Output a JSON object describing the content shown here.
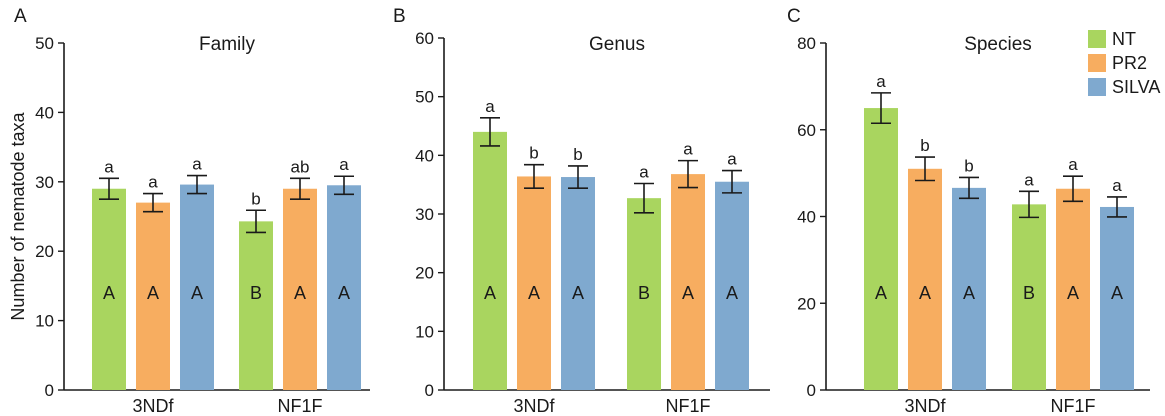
{
  "colors": {
    "NT": "#a9d55f",
    "PR2": "#f7ad60",
    "SILVA": "#7fa9cf",
    "axis": "#1a1a1a"
  },
  "legend": {
    "items": [
      "NT",
      "PR2",
      "SILVA"
    ],
    "placement": "top-right"
  },
  "chart_data": [
    {
      "panel_label": "A",
      "type": "bar",
      "title": "Family",
      "ylabel": "Number of nematode taxa",
      "xlabel": "",
      "ylim": [
        0,
        50
      ],
      "yticks": [
        0,
        10,
        20,
        30,
        40,
        50
      ],
      "categories": [
        "3NDf",
        "NF1F"
      ],
      "series": [
        {
          "name": "NT",
          "values": [
            29.0,
            24.3
          ],
          "err": [
            1.5,
            1.6
          ],
          "sig_upper": [
            "a",
            "b"
          ],
          "sig_lower": [
            "A",
            "B"
          ]
        },
        {
          "name": "PR2",
          "values": [
            27.0,
            29.0
          ],
          "err": [
            1.3,
            1.5
          ],
          "sig_upper": [
            "a",
            "ab"
          ],
          "sig_lower": [
            "A",
            "A"
          ]
        },
        {
          "name": "SILVA",
          "values": [
            29.6,
            29.5
          ],
          "err": [
            1.3,
            1.3
          ],
          "sig_upper": [
            "a",
            "a"
          ],
          "sig_lower": [
            "A",
            "A"
          ]
        }
      ]
    },
    {
      "panel_label": "B",
      "type": "bar",
      "title": "Genus",
      "ylabel": "",
      "xlabel": "",
      "ylim": [
        0,
        60
      ],
      "yticks": [
        0,
        10,
        20,
        30,
        40,
        50,
        60
      ],
      "categories": [
        "3NDf",
        "NF1F"
      ],
      "series": [
        {
          "name": "NT",
          "values": [
            44.0,
            32.7
          ],
          "err": [
            2.4,
            2.5
          ],
          "sig_upper": [
            "a",
            "a"
          ],
          "sig_lower": [
            "A",
            "B"
          ]
        },
        {
          "name": "PR2",
          "values": [
            36.4,
            36.8
          ],
          "err": [
            2.0,
            2.3
          ],
          "sig_upper": [
            "b",
            "a"
          ],
          "sig_lower": [
            "A",
            "A"
          ]
        },
        {
          "name": "SILVA",
          "values": [
            36.3,
            35.5
          ],
          "err": [
            1.9,
            1.9
          ],
          "sig_upper": [
            "b",
            "a"
          ],
          "sig_lower": [
            "A",
            "A"
          ]
        }
      ]
    },
    {
      "panel_label": "C",
      "type": "bar",
      "title": "Species",
      "ylabel": "",
      "xlabel": "",
      "ylim": [
        0,
        80
      ],
      "yticks": [
        0,
        20,
        40,
        60,
        80
      ],
      "categories": [
        "3NDf",
        "NF1F"
      ],
      "series": [
        {
          "name": "NT",
          "values": [
            65.0,
            42.8
          ],
          "err": [
            3.5,
            3.0
          ],
          "sig_upper": [
            "a",
            "a"
          ],
          "sig_lower": [
            "A",
            "B"
          ]
        },
        {
          "name": "PR2",
          "values": [
            51.0,
            46.4
          ],
          "err": [
            2.7,
            2.9
          ],
          "sig_upper": [
            "b",
            "a"
          ],
          "sig_lower": [
            "A",
            "A"
          ]
        },
        {
          "name": "SILVA",
          "values": [
            46.6,
            42.2
          ],
          "err": [
            2.4,
            2.3
          ],
          "sig_upper": [
            "b",
            "a"
          ],
          "sig_lower": [
            "A",
            "A"
          ]
        }
      ]
    }
  ]
}
